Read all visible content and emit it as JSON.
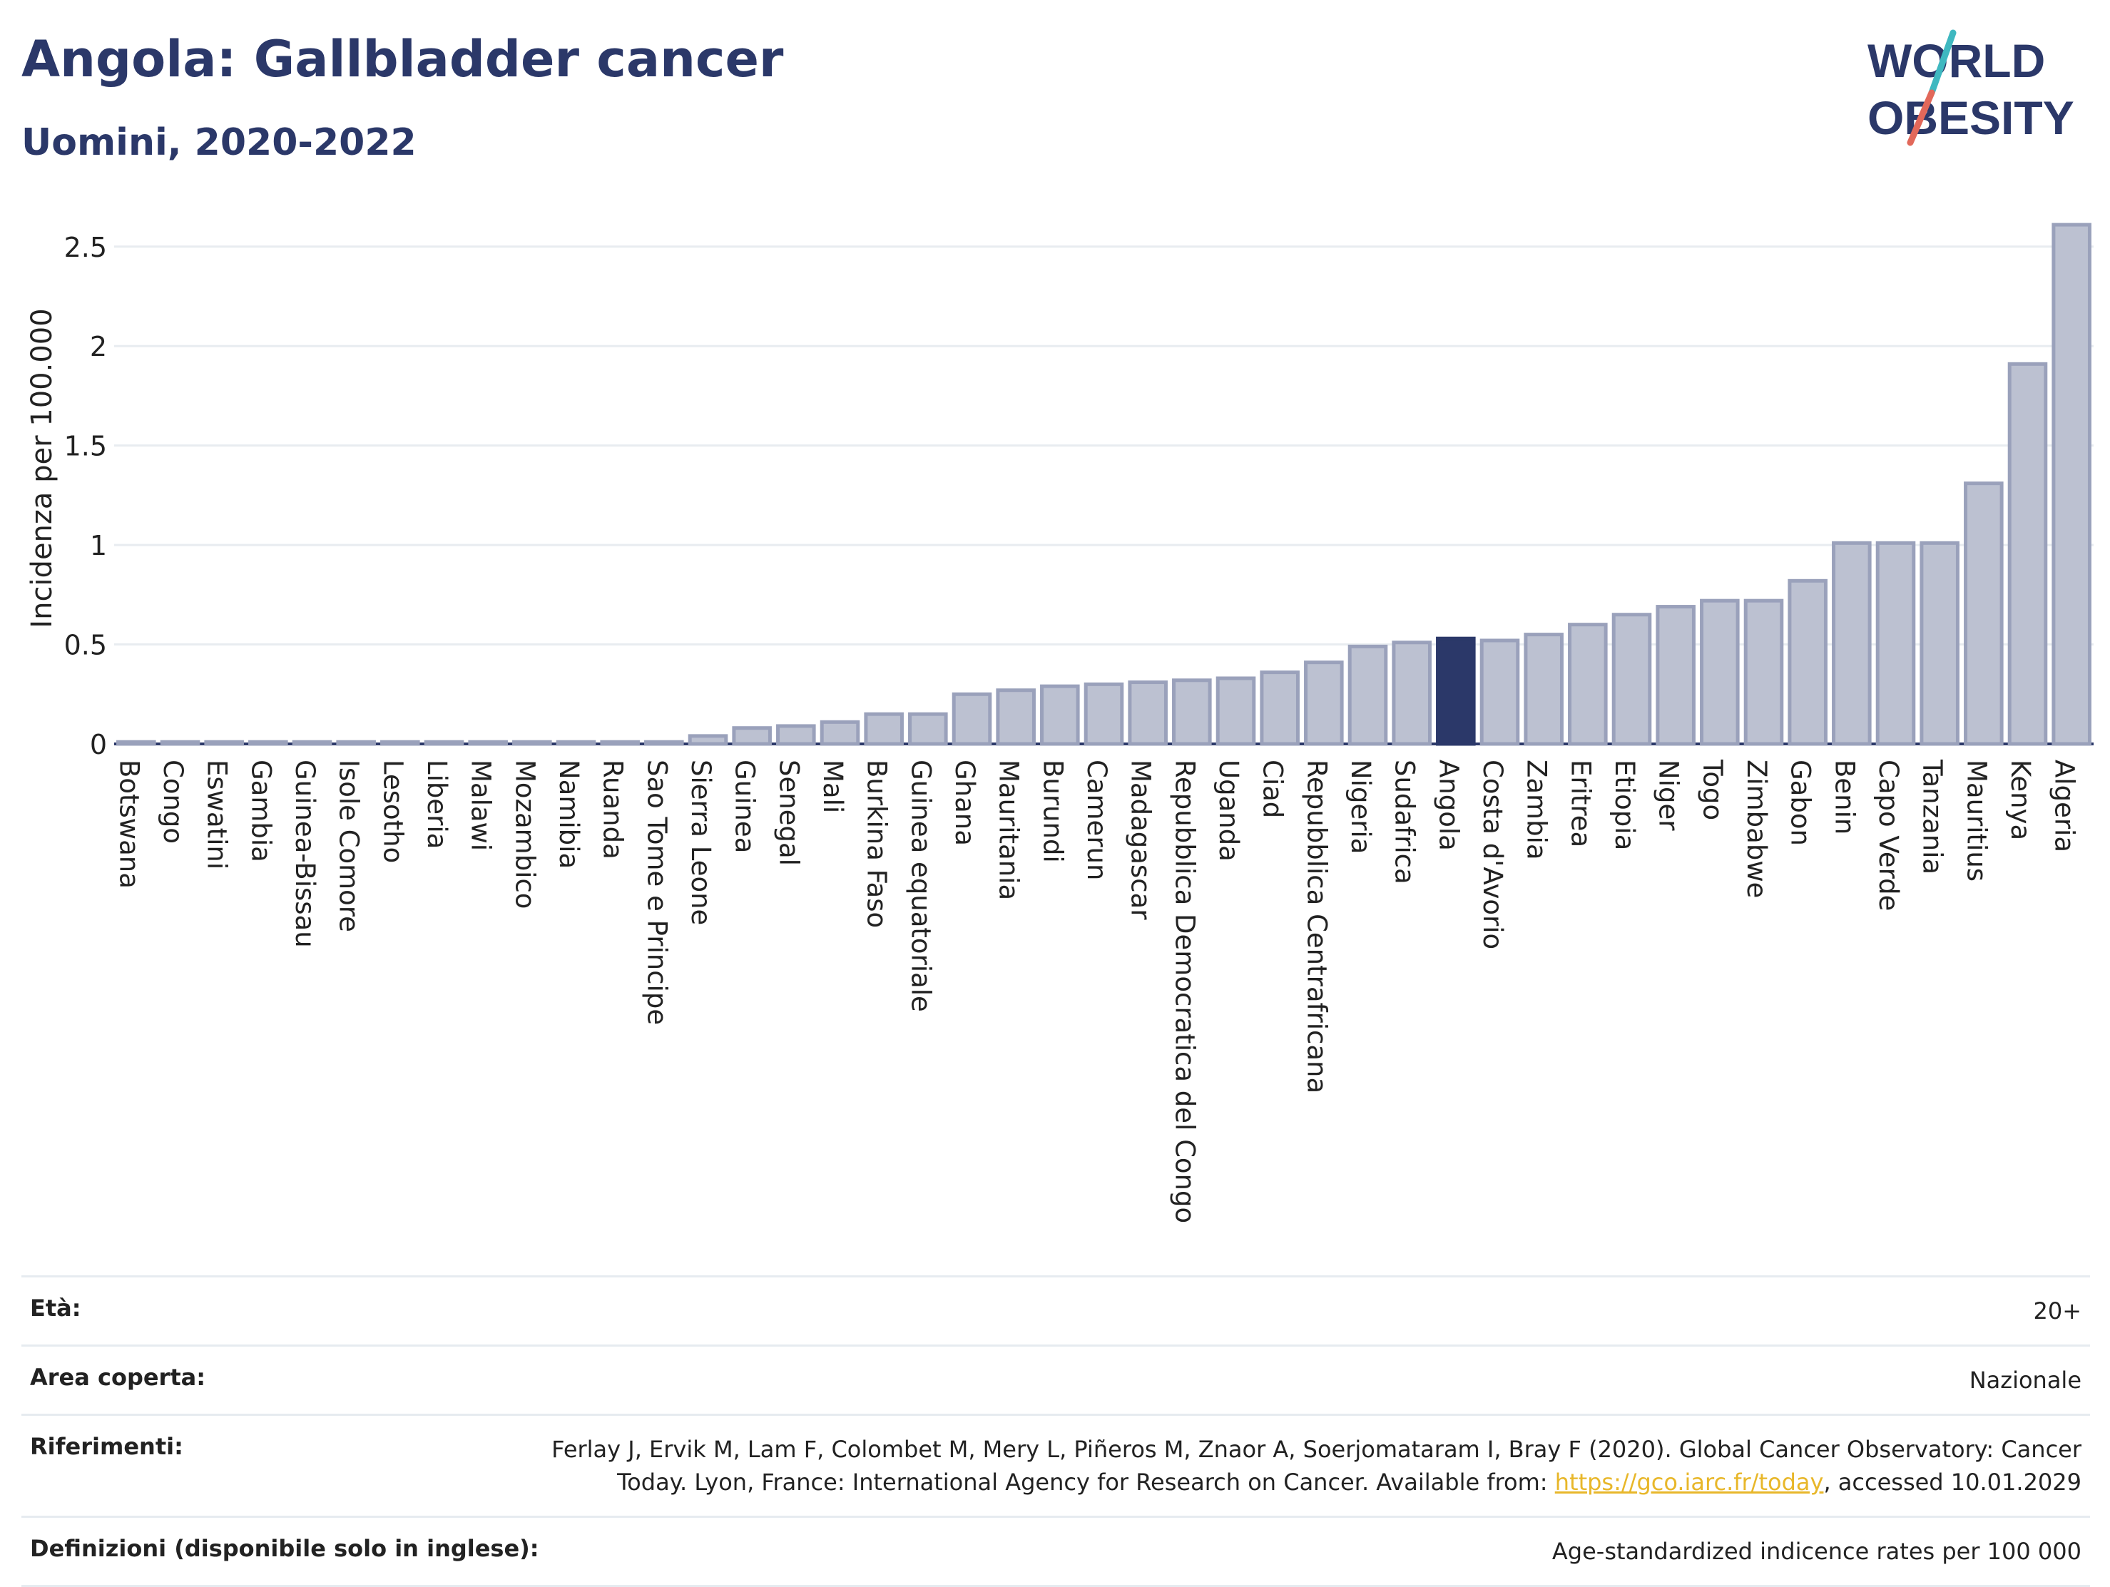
{
  "header": {
    "title": "Angola: Gallbladder cancer",
    "subtitle": "Uomini, 2020-2022",
    "logo_line1": "WORLD",
    "logo_line2": "OBESITY"
  },
  "colors": {
    "bar": "#bcc1d1",
    "bar_stroke": "#9aa1bb",
    "highlight": "#2b3869",
    "logo_teal": "#3fb8c0",
    "logo_red": "#e2685a"
  },
  "chart_data": {
    "type": "bar",
    "ylabel": "Incidenza per 100.000",
    "ylim": [
      0,
      2.7
    ],
    "yticks": [
      0,
      0.5,
      1,
      1.5,
      2,
      2.5
    ],
    "ytick_labels": [
      "0",
      "0.5",
      "1",
      "1.5",
      "2",
      "2.5"
    ],
    "grid": true,
    "highlight": "Angola",
    "categories": [
      "Botswana",
      "Congo",
      "Eswatini",
      "Gambia",
      "Guinea-Bissau",
      "Isole Comore",
      "Lesotho",
      "Liberia",
      "Malawi",
      "Mozambico",
      "Namibia",
      "Ruanda",
      "Sao Tome e Principe",
      "Sierra Leone",
      "Guinea",
      "Senegal",
      "Mali",
      "Burkina Faso",
      "Guinea equatoriale",
      "Ghana",
      "Mauritania",
      "Burundi",
      "Camerun",
      "Madagascar",
      "Repubblica Democratica del Congo",
      "Uganda",
      "Ciad",
      "Repubblica Centrafricana",
      "Nigeria",
      "Sudafrica",
      "Angola",
      "Costa d'Avorio",
      "Zambia",
      "Eritrea",
      "Etiopia",
      "Niger",
      "Togo",
      "Zimbabwe",
      "Gabon",
      "Benin",
      "Capo Verde",
      "Tanzania",
      "Mauritius",
      "Kenya",
      "Algeria"
    ],
    "values": [
      0.01,
      0.01,
      0.01,
      0.01,
      0.01,
      0.01,
      0.01,
      0.01,
      0.01,
      0.01,
      0.01,
      0.01,
      0.01,
      0.04,
      0.08,
      0.09,
      0.11,
      0.15,
      0.15,
      0.25,
      0.27,
      0.29,
      0.3,
      0.31,
      0.32,
      0.33,
      0.36,
      0.41,
      0.49,
      0.51,
      0.53,
      0.52,
      0.55,
      0.6,
      0.65,
      0.69,
      0.72,
      0.72,
      0.82,
      1.01,
      1.01,
      1.01,
      1.31,
      1.91,
      2.61
    ]
  },
  "meta": {
    "age_label": "Età:",
    "age_value": "20+",
    "area_label": "Area coperta:",
    "area_value": "Nazionale",
    "ref_label": "Riferimenti:",
    "ref_text1": "Ferlay J, Ervik M, Lam F, Colombet M, Mery L, Piñeros M, Znaor A, Soerjomataram I, Bray F (2020). Global Cancer Observatory: Cancer",
    "ref_text2": "Today. Lyon, France: International Agency for Research on Cancer. Available from: ",
    "ref_link": "https://gco.iarc.fr/today",
    "ref_text3": ", accessed 10.01.2029",
    "def_label": "Definizioni (disponibile solo in inglese):",
    "def_value": "Age-standardized indicence rates per 100 000"
  }
}
